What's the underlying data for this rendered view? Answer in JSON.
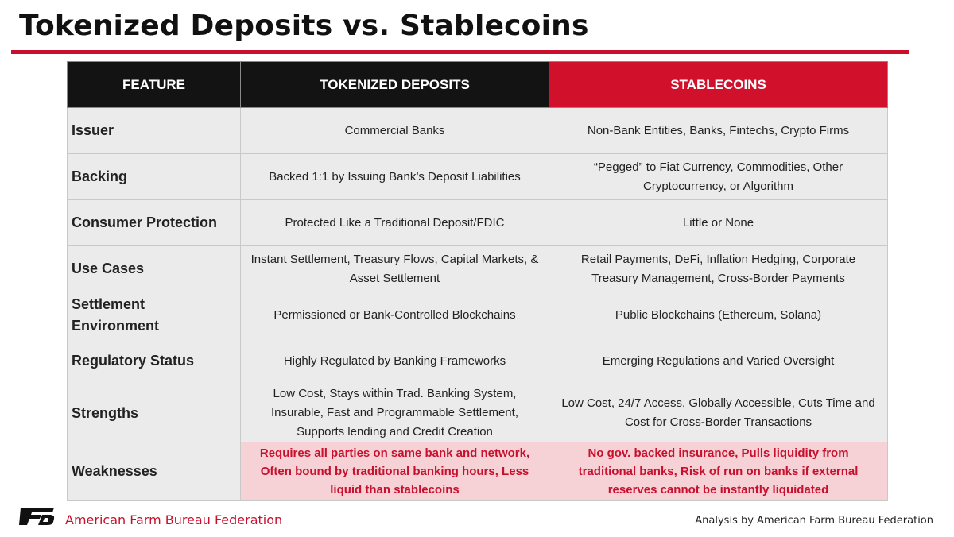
{
  "title": "Tokenized Deposits vs. Stablecoins",
  "table": {
    "headers": [
      "FEATURE",
      "TOKENIZED DEPOSITS",
      "STABLECOINS"
    ],
    "rows": [
      {
        "feature": "Issuer",
        "tokenized": "Commercial Banks",
        "stablecoins": "Non-Bank Entities, Banks, Fintechs, Crypto Firms"
      },
      {
        "feature": "Backing",
        "tokenized": "Backed 1:1 by Issuing Bank’s Deposit Liabilities",
        "stablecoins": "“Pegged” to Fiat Currency, Commodities, Other Cryptocurrency, or Algorithm"
      },
      {
        "feature": "Consumer Protection",
        "tokenized": "Protected Like a Traditional Deposit/FDIC",
        "stablecoins": "Little or None"
      },
      {
        "feature": "Use Cases",
        "tokenized": "Instant Settlement, Treasury Flows, Capital Markets, & Asset Settlement",
        "stablecoins": "Retail Payments, DeFi, Inflation Hedging, Corporate Treasury Management, Cross-Border Payments"
      },
      {
        "feature": "Settlement Environment",
        "tokenized": "Permissioned or Bank-Controlled Blockchains",
        "stablecoins": "Public Blockchains (Ethereum, Solana)"
      },
      {
        "feature": "Regulatory Status",
        "tokenized": "Highly Regulated by Banking Frameworks",
        "stablecoins": "Emerging Regulations and Varied Oversight"
      },
      {
        "feature": "Strengths",
        "tokenized": "Low Cost, Stays within Trad. Banking System, Insurable, Fast and Programmable Settlement, Supports lending and Credit Creation",
        "stablecoins": "Low Cost, 24/7 Access, Globally Accessible, Cuts Time and Cost for Cross-Border Transactions"
      },
      {
        "feature": "Weaknesses",
        "tokenized": "Requires all parties on same bank and network, Often bound by traditional banking hours, Less liquid than stablecoins",
        "stablecoins": "No gov. backed insurance, Pulls liquidity from traditional banks, Risk of run on banks if external reserves cannot be instantly liquidated"
      }
    ]
  },
  "footer": {
    "logo_text": "FB",
    "org_name": "American Farm Bureau Federation",
    "credit": "Analysis by American Farm Bureau Federation"
  },
  "colors": {
    "accent_red": "#c8102e",
    "header_black": "#131313",
    "row_gray": "#ebebeb",
    "weak_pink": "#f6d2d7"
  }
}
